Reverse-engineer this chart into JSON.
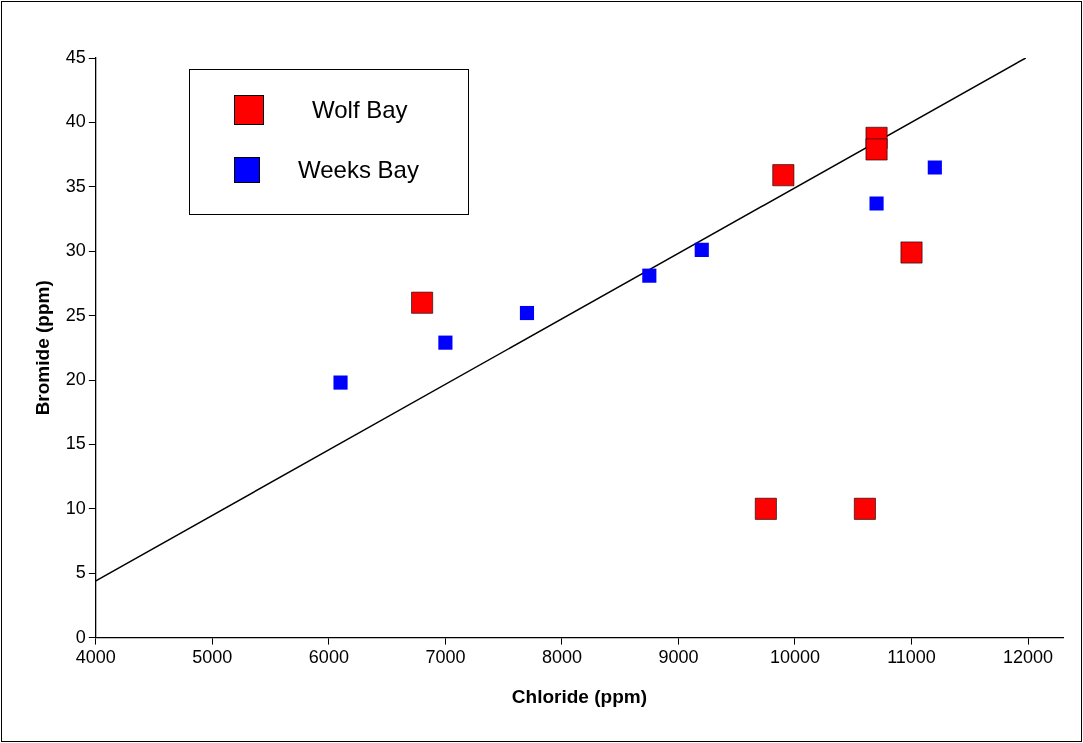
{
  "chart_data": {
    "type": "scatter",
    "xlabel": "Chloride (ppm)",
    "ylabel": "Bromide (ppm)",
    "xlim": [
      4000,
      12300
    ],
    "xticks": [
      4000,
      5000,
      6000,
      7000,
      8000,
      9000,
      10000,
      11000,
      12000
    ],
    "ylim": [
      0,
      45
    ],
    "yticks": [
      0,
      5,
      10,
      15,
      20,
      25,
      30,
      35,
      40,
      45
    ],
    "grid": false,
    "legend": "top left",
    "series": [
      {
        "name": "Wolf Bay",
        "color": "#ff0000",
        "marker": "square",
        "x": [
          6800,
          9750,
          9900,
          10600,
          10700,
          10700,
          11000
        ],
        "values": [
          26,
          10,
          35.9,
          10,
          38.8,
          37.9,
          29.9
        ]
      },
      {
        "name": "Weeks Bay",
        "color": "#0000ff",
        "marker": "square",
        "x": [
          6100,
          7000,
          7700,
          8750,
          9200,
          10700,
          11200
        ],
        "values": [
          19.8,
          22.9,
          25.2,
          28.1,
          30.1,
          33.7,
          36.5
        ]
      },
      {
        "type": "line",
        "color": "#000000",
        "x": [
          4000,
          11980
        ],
        "values": [
          4.4,
          45
        ],
        "marker": "none"
      }
    ]
  }
}
